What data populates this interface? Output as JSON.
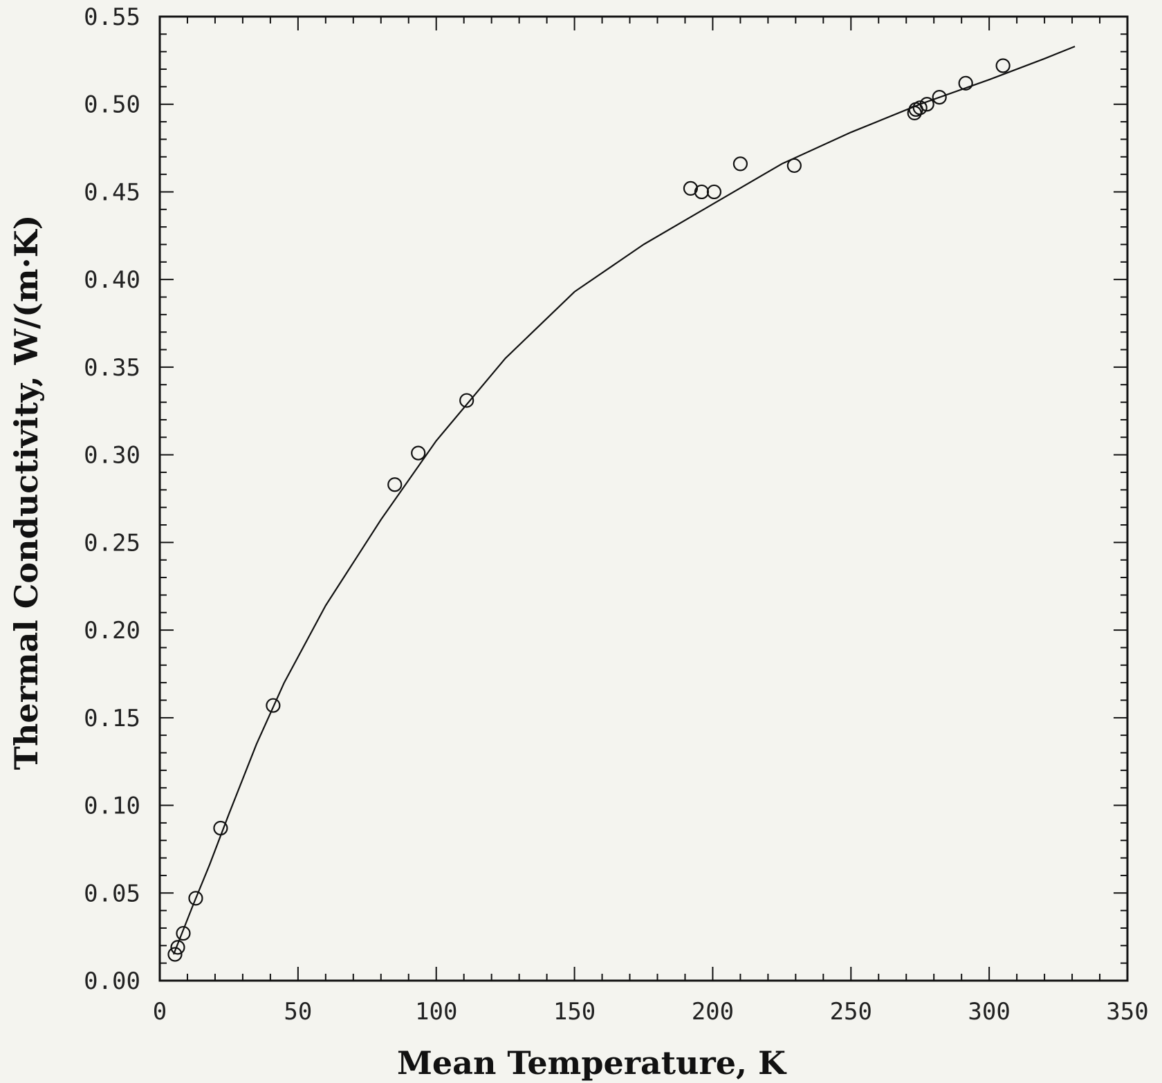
{
  "chart_data": {
    "type": "scatter",
    "xlabel": "Mean Temperature, K",
    "ylabel": "Thermal Conductivity, W/(m·K)",
    "xlim": [
      0,
      350
    ],
    "ylim": [
      0,
      0.55
    ],
    "x_ticks": [
      0,
      50,
      100,
      150,
      200,
      250,
      300,
      350
    ],
    "x_tick_labels": [
      "0",
      "50",
      "100",
      "150",
      "200",
      "250",
      "300",
      "350"
    ],
    "y_ticks": [
      0,
      0.05,
      0.1,
      0.15,
      0.2,
      0.25,
      0.3,
      0.35,
      0.4,
      0.45,
      0.5,
      0.55
    ],
    "y_tick_labels": [
      "0.00",
      "0.05",
      "0.10",
      "0.15",
      "0.20",
      "0.25",
      "0.30",
      "0.35",
      "0.40",
      "0.45",
      "0.50",
      "0.55"
    ],
    "grid": false,
    "series": [
      {
        "kind": "points",
        "marker": "open-circle",
        "x": [
          5.5,
          6.5,
          8.5,
          13,
          22,
          41,
          85,
          93.5,
          111,
          192,
          196,
          200.5,
          210,
          229.5,
          273,
          273.5,
          275,
          277.5,
          282,
          291.5,
          305
        ],
        "y": [
          0.015,
          0.019,
          0.027,
          0.047,
          0.087,
          0.157,
          0.283,
          0.301,
          0.331,
          0.452,
          0.45,
          0.45,
          0.466,
          0.465,
          0.495,
          0.497,
          0.498,
          0.5,
          0.504,
          0.512,
          0.522
        ]
      },
      {
        "kind": "curve",
        "x": [
          5,
          8,
          12,
          18,
          25,
          35,
          45,
          60,
          80,
          100,
          125,
          150,
          175,
          200,
          225,
          250,
          275,
          300,
          320,
          331
        ],
        "y": [
          0.015,
          0.027,
          0.043,
          0.066,
          0.095,
          0.135,
          0.17,
          0.214,
          0.263,
          0.308,
          0.355,
          0.393,
          0.42,
          0.443,
          0.466,
          0.484,
          0.5,
          0.514,
          0.526,
          0.533
        ]
      }
    ]
  }
}
